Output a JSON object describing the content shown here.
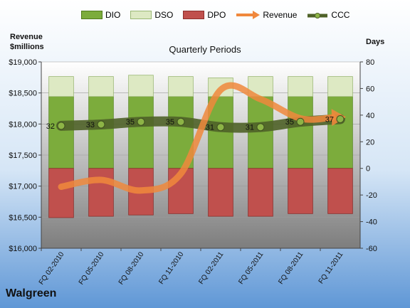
{
  "company": "Walgreen",
  "chart_data": {
    "type": "bar",
    "title": "Quarterly Periods",
    "ylabel_left": "Revenue\n$millions",
    "ylabel_right": "Days",
    "categories": [
      "FQ 02-2010",
      "FQ 05-2010",
      "FQ 08-2010",
      "FQ 11-2010",
      "FQ 02-2011",
      "FQ 05-2011",
      "FQ 08-2011",
      "FQ 11-2011"
    ],
    "left_axis": {
      "min": 16000,
      "max": 19000,
      "ticks": [
        "$16,000",
        "$16,500",
        "$17,000",
        "$17,500",
        "$18,000",
        "$18,500",
        "$19,000"
      ]
    },
    "right_axis": {
      "min": -60,
      "max": 80,
      "ticks": [
        "-60",
        "-40",
        "-20",
        "0",
        "20",
        "40",
        "60",
        "80"
      ]
    },
    "series": [
      {
        "name": "DIO",
        "type": "stacked-bar",
        "axis": "right",
        "color": "#7cac3c",
        "values": [
          54,
          54,
          54,
          54,
          54,
          54,
          54,
          54
        ]
      },
      {
        "name": "DSO",
        "type": "stacked-bar",
        "axis": "right",
        "color": "#dde9c3",
        "values": [
          15,
          15,
          16,
          15,
          14,
          15,
          15,
          15
        ]
      },
      {
        "name": "DPO",
        "type": "stacked-bar-negative",
        "axis": "right",
        "color": "#c0504d",
        "values": [
          -37,
          -36,
          -35,
          -34,
          -36,
          -36,
          -34,
          -34
        ]
      },
      {
        "name": "Revenue",
        "type": "line",
        "axis": "left",
        "color": "#f0883c",
        "values": [
          16990,
          17100,
          16930,
          17200,
          18550,
          18400,
          18090,
          18110
        ]
      },
      {
        "name": "CCC",
        "type": "line",
        "axis": "right",
        "color": "#4f6228",
        "values": [
          32,
          33,
          35,
          35,
          31,
          31,
          35,
          37
        ]
      }
    ],
    "data_labels": [
      "32",
      "33",
      "35",
      "35",
      "31",
      "31",
      "35",
      "37"
    ],
    "legend_position": "top"
  }
}
